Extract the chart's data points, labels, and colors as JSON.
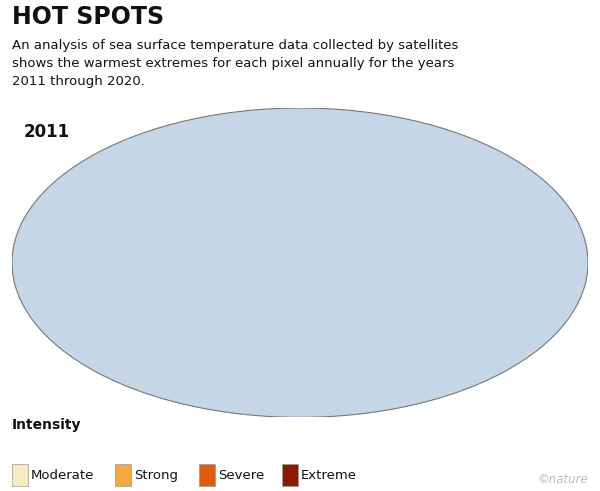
{
  "title": "HOT SPOTS",
  "subtitle": "An analysis of sea surface temperature data collected by satellites\nshows the warmest extremes for each pixel annually for the years\n2011 through 2020.",
  "year_label": "2011",
  "legend_title": "Intensity",
  "legend_items": [
    "Moderate",
    "Strong",
    "Severe",
    "Extreme"
  ],
  "legend_colors": [
    "#FAEAC0",
    "#F5A942",
    "#E05A10",
    "#8B1A00"
  ],
  "ocean_color": "#C5D6E6",
  "land_color": "#FFFFFF",
  "background_color": "#FFFFFF",
  "map_border_color": "#777777",
  "copyright_text": "©nature",
  "title_fontsize": 17,
  "subtitle_fontsize": 9.5,
  "year_fontsize": 12,
  "legend_title_fontsize": 10,
  "legend_item_fontsize": 9.5,
  "central_longitude": 200
}
